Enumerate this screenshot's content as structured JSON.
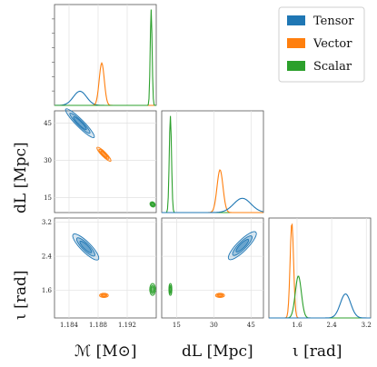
{
  "chart_data": {
    "type": "corner",
    "grid": true,
    "legend_position": "top-right",
    "series": [
      {
        "name": "Tensor",
        "color": "#1f77b4"
      },
      {
        "name": "Vector",
        "color": "#ff7f0e"
      },
      {
        "name": "Scalar",
        "color": "#2ca02c"
      }
    ],
    "parameters": [
      {
        "key": "mc",
        "label": "ℳ [M⊙]",
        "range": [
          1.182,
          1.196
        ],
        "ticks": [
          "1.184",
          "1.188",
          "1.192"
        ],
        "tick_values": [
          1.184,
          1.188,
          1.192
        ]
      },
      {
        "key": "dl",
        "label": "dL [Mpc]",
        "range": [
          9,
          50
        ],
        "ticks": [
          "15",
          "30",
          "45"
        ],
        "tick_values": [
          15,
          30,
          45
        ]
      },
      {
        "key": "inc",
        "label": "ι [rad]",
        "range": [
          0.95,
          3.3
        ],
        "ticks": [
          "1.6",
          "2.4",
          "3.2"
        ],
        "tick_values": [
          1.6,
          2.4,
          3.2
        ]
      }
    ],
    "marginals": {
      "mc": [
        {
          "series": "Tensor",
          "peak": 1.1855,
          "width": 0.0009,
          "height": 0.14
        },
        {
          "series": "Vector",
          "peak": 1.1885,
          "width": 0.00035,
          "height": 0.42
        },
        {
          "series": "Scalar",
          "peak": 1.1953,
          "width": 0.00013,
          "height": 0.95
        }
      ],
      "dl": [
        {
          "series": "Scalar",
          "peak": 12.5,
          "width": 0.45,
          "height": 0.95
        },
        {
          "series": "Vector",
          "peak": 32.5,
          "width": 1.2,
          "height": 0.42
        },
        {
          "series": "Tensor",
          "peak": 41.5,
          "width": 3.5,
          "height": 0.14
        }
      ],
      "inc": [
        {
          "series": "Vector",
          "peak": 1.48,
          "width": 0.04,
          "height": 0.95
        },
        {
          "series": "Scalar",
          "peak": 1.63,
          "width": 0.07,
          "height": 0.42
        },
        {
          "series": "Tensor",
          "peak": 2.72,
          "width": 0.12,
          "height": 0.24
        }
      ]
    },
    "joint": {
      "mc_dl": [
        {
          "series": "Tensor",
          "center": [
            1.1855,
            45
          ],
          "spread": [
            0.0022,
            5
          ],
          "corr": -0.96
        },
        {
          "series": "Vector",
          "center": [
            1.1888,
            32.5
          ],
          "spread": [
            0.0011,
            2.3
          ],
          "corr": -0.96
        },
        {
          "series": "Scalar",
          "center": [
            1.1955,
            12.3
          ],
          "spread": [
            0.0004,
            0.6
          ],
          "corr": -0.6
        }
      ],
      "mc_inc": [
        {
          "series": "Tensor",
          "center": [
            1.1863,
            2.62
          ],
          "spread": [
            0.0016,
            0.33
          ],
          "corr": -0.9
        },
        {
          "series": "Vector",
          "center": [
            1.1888,
            1.48
          ],
          "spread": [
            0.0006,
            0.05
          ],
          "corr": 0.0
        },
        {
          "series": "Scalar",
          "center": [
            1.1955,
            1.62
          ],
          "spread": [
            0.0004,
            0.14
          ],
          "corr": 0.0
        }
      ],
      "dl_inc": [
        {
          "series": "Tensor",
          "center": [
            41.5,
            2.65
          ],
          "spread": [
            5.5,
            0.33
          ],
          "corr": 0.9
        },
        {
          "series": "Vector",
          "center": [
            32.5,
            1.48
          ],
          "spread": [
            1.8,
            0.05
          ],
          "corr": 0.0
        },
        {
          "series": "Scalar",
          "center": [
            12.5,
            1.62
          ],
          "spread": [
            0.6,
            0.14
          ],
          "corr": 0.0
        }
      ]
    }
  }
}
